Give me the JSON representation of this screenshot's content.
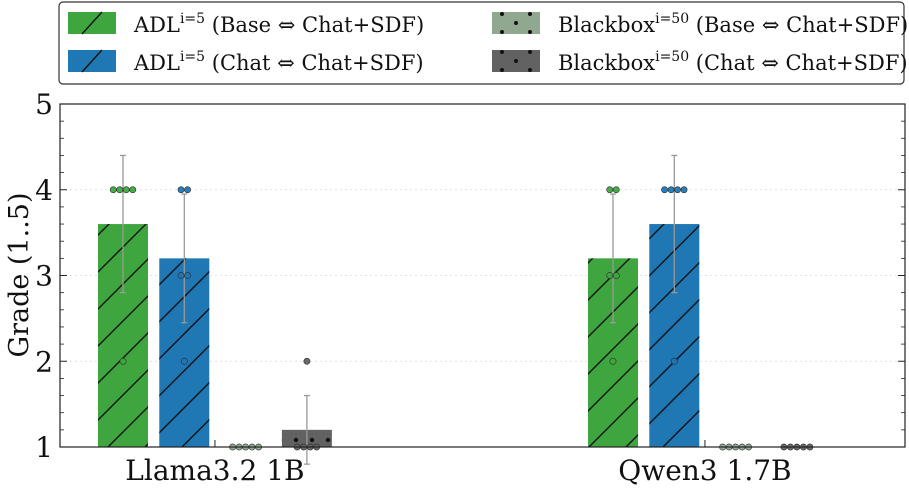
{
  "chart_data": {
    "type": "bar",
    "categories": [
      "Llama3.2 1B",
      "Qwen3 1.7B"
    ],
    "ylabel": "Grade (1..5)",
    "ylim": [
      1,
      5
    ],
    "yticks": [
      "1",
      "2",
      "3",
      "4",
      "5"
    ],
    "legend_position": "top",
    "grid": "horizontal-dotted",
    "series": [
      {
        "name": "ADL",
        "name_sup": "i=5",
        "name_rest": " (Base ⇔ Chat+SDF)",
        "color": "#3fa63f",
        "pattern": "hatch",
        "values": [
          3.6,
          3.2
        ],
        "err": [
          0.8,
          0.75
        ],
        "points": [
          [
            4,
            4,
            4,
            4,
            2
          ],
          [
            4,
            4,
            3,
            3,
            2
          ]
        ]
      },
      {
        "name": "ADL",
        "name_sup": "i=5",
        "name_rest": " (Chat ⇔ Chat+SDF)",
        "color": "#1f77b4",
        "pattern": "hatch",
        "values": [
          3.2,
          3.6
        ],
        "err": [
          0.75,
          0.8
        ],
        "points": [
          [
            4,
            4,
            3,
            3,
            2
          ],
          [
            4,
            4,
            4,
            4,
            2
          ]
        ]
      },
      {
        "name": "Blackbox",
        "name_sup": "i=50",
        "name_rest": " (Base ⇔ Chat+SDF)",
        "color": "#8fa88f",
        "pattern": "dots",
        "values": [
          1.0,
          1.0
        ],
        "err": [
          0,
          0
        ],
        "points": [
          [
            1,
            1,
            1,
            1,
            1
          ],
          [
            1,
            1,
            1,
            1,
            1
          ]
        ]
      },
      {
        "name": "Blackbox",
        "name_sup": "i=50",
        "name_rest": " (Chat ⇔ Chat+SDF)",
        "color": "#626262",
        "pattern": "dots",
        "values": [
          1.2,
          1.0
        ],
        "err": [
          0.4,
          0
        ],
        "points": [
          [
            2,
            1,
            1,
            1,
            1
          ],
          [
            1,
            1,
            1,
            1,
            1
          ]
        ]
      }
    ]
  }
}
